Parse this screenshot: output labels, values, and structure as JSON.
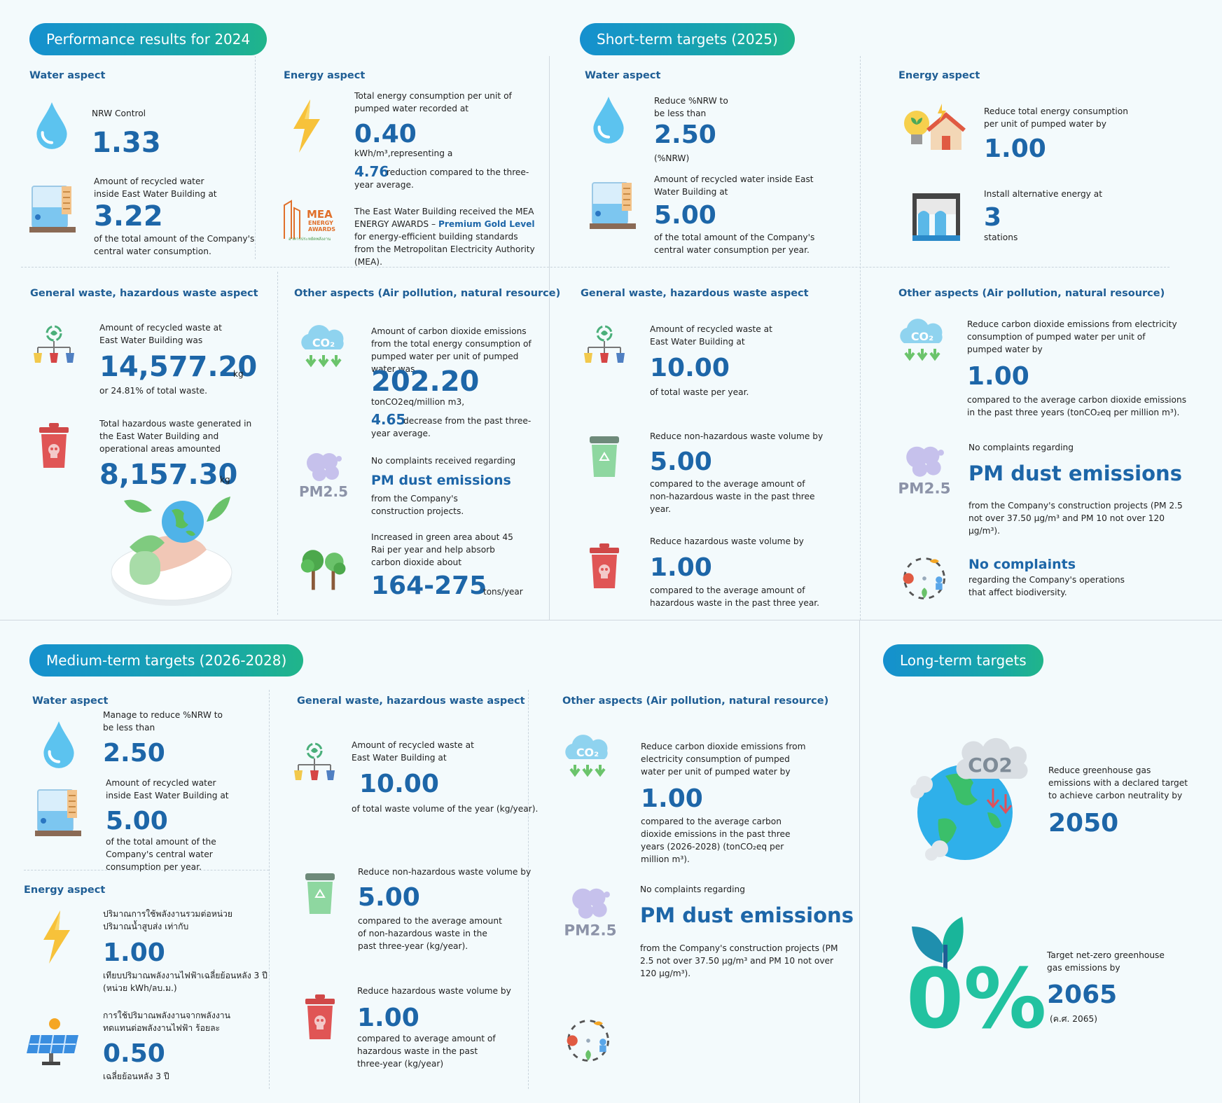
{
  "colors": {
    "accent": "#1d66a8",
    "pill_from": "#1590cf",
    "pill_to": "#20b58a",
    "background": "#f3fafc"
  },
  "perf": {
    "pill": "Performance results for 2024",
    "water": {
      "title": "Water aspect",
      "nrw_label": "NRW Control",
      "nrw_value": "1.33",
      "recycled_label": "Amount of recycled water inside East Water Building at",
      "recycled_value": "3.22",
      "recycled_note": "of the total amount of the Company's central water consumption."
    },
    "energy": {
      "title": "Energy aspect",
      "label": "Total energy consumption per unit of pumped water recorded at",
      "value": "0.40",
      "unit": "kWh/m³,representing a",
      "reduction": "4.76",
      "reduction_note": "reduction compared to the three-year average.",
      "mea_logo_title": "MEA",
      "mea_logo_sub1": "ENERGY",
      "mea_logo_sub2": "AWARDS",
      "mea_logo_thai": "อาคารประหยัดพลังงาน",
      "mea_pre": "The East Water Building received the MEA ENERGY AWARDS – ",
      "mea_highlight": "Premium Gold Level",
      "mea_post": " for energy-efficient building standards from the Metropolitan Electricity Authority (MEA)."
    },
    "waste": {
      "title": "General waste, hazardous waste aspect",
      "recycled_label": "Amount of recycled waste at East Water Building was",
      "recycled_value": "14,577.20",
      "recycled_unit": "kg",
      "recycled_note": "or 24.81% of total waste.",
      "hazard_label": "Total hazardous waste generated in the East Water Building and operational areas amounted",
      "hazard_value": "8,157.30",
      "hazard_unit": "kg"
    },
    "other": {
      "title": "Other aspects (Air pollution, natural resource)",
      "co2_label": "Amount of carbon dioxide emissions from the total energy consumption of pumped water per unit of pumped water was",
      "co2_value": "202.20",
      "co2_unit": "tonCO2eq/million m3,",
      "co2_decrease": "4.65",
      "co2_decrease_note": "decrease from the past three-year average.",
      "pm_label": "No complaints received regarding",
      "pm_value": "PM dust emissions",
      "pm_note": "from the Company's construction projects.",
      "green_label": "Increased in green area about 45 Rai per year and help absorb carbon dioxide about",
      "green_value": "164-275",
      "green_unit": "tons/year"
    }
  },
  "short": {
    "pill": "Short-term targets (2025)",
    "water": {
      "title": "Water aspect",
      "nrw_label": "Reduce %NRW to be less than",
      "nrw_value": "2.50",
      "nrw_unit": "(%NRW)",
      "recycled_label": "Amount of recycled water inside East Water Building at",
      "recycled_value": "5.00",
      "recycled_note": "of the total amount of the Company's central water consumption per year."
    },
    "energy": {
      "title": "Energy aspect",
      "label": "Reduce total energy consumption per unit of pumped water by",
      "value": "1.00",
      "alt_label": "Install alternative energy at",
      "alt_value": "3",
      "alt_unit": "stations"
    },
    "waste": {
      "title": "General waste, hazardous waste aspect",
      "recycled_label": "Amount of recycled waste at East Water Building at",
      "recycled_value": "10.00",
      "recycled_note": "of total waste per year.",
      "nonhaz_label": "Reduce non-hazardous waste volume by",
      "nonhaz_value": "5.00",
      "nonhaz_note": "compared to the average amount of non-hazardous waste in the past three year.",
      "haz_label": "Reduce hazardous waste volume by",
      "haz_value": "1.00",
      "haz_note": "compared to the average amount of hazardous waste in the past three year."
    },
    "other": {
      "title": "Other aspects (Air pollution, natural resource)",
      "co2_label": "Reduce carbon dioxide emissions from electricity consumption of pumped water per unit of pumped water by",
      "co2_value": "1.00",
      "co2_note": "compared to the average carbon dioxide emissions in the past three years (tonCO₂eq per million m³).",
      "pm_label": "No complaints regarding",
      "pm_value": "PM dust emissions",
      "pm_note": "from the Company's construction projects (PM 2.5 not over 37.50 µg/m³ and PM 10 not over 120 µg/m³).",
      "bio_value": "No complaints",
      "bio_note": "regarding the Company's operations that affect biodiversity."
    }
  },
  "medium": {
    "pill": "Medium-term targets (2026-2028)",
    "water": {
      "title": "Water aspect",
      "nrw_label": "Manage to reduce %NRW to be less than",
      "nrw_value": "2.50",
      "recycled_label": "Amount of recycled water inside East Water Building at",
      "recycled_value": "5.00",
      "recycled_note": "of the total amount of the Company's central water consumption per year."
    },
    "energy": {
      "title": "Energy aspect",
      "label": "ปริมาณการใช้พลังงานรวมต่อหน่วยปริมาณน้ำสูบส่ง เท่ากับ",
      "value": "1.00",
      "note": "เทียบปริมาณพลังงานไฟฟ้าเฉลี่ยย้อนหลัง 3 ปี (หน่วย kWh/ลบ.ม.)",
      "alt_label": "การใช้ปริมาณพลังงานจากพลังงานทดแทนต่อพลังงานไฟฟ้า ร้อยละ",
      "alt_value": "0.50",
      "alt_note": "เฉลี่ยย้อนหลัง 3 ปี"
    },
    "waste": {
      "title": "General waste, hazardous waste aspect",
      "recycled_label": "Amount of recycled waste at East Water Building at",
      "recycled_value": "10.00",
      "recycled_note": "of total waste volume of the year (kg/year).",
      "nonhaz_label": "Reduce non-hazardous waste volume by",
      "nonhaz_value": "5.00",
      "nonhaz_note": "compared to the average amount of non-hazardous waste in the past three-year (kg/year).",
      "haz_label": "Reduce hazardous waste volume by",
      "haz_value": "1.00",
      "haz_note": "compared to average amount of hazardous waste in the past three-year (kg/year)"
    },
    "other": {
      "title": "Other aspects (Air pollution, natural resource)",
      "co2_label": "Reduce carbon dioxide emissions from electricity consumption of pumped water per unit of pumped water by",
      "co2_value": "1.00",
      "co2_note": "compared to the average carbon dioxide emissions in the past three years (2026-2028) (tonCO₂eq per million m³).",
      "pm_label": "No complaints regarding",
      "pm_value": "PM dust emissions",
      "pm_note": "from the Company's construction projects (PM 2.5 not over 37.50 µg/m³ and PM 10 not over 120 µg/m³)."
    }
  },
  "long": {
    "pill": "Long-term targets",
    "ghg_label": "Reduce greenhouse gas emissions with a declared target to achieve carbon neutrality by",
    "ghg_value": "2050",
    "nz_label": "Target net-zero greenhouse gas emissions by",
    "nz_value": "2065",
    "nz_note": "(ค.ศ. 2065)",
    "co2_badge": "CO2",
    "zero_badge": "0%"
  },
  "icon_labels": {
    "co2": "CO₂",
    "pm": "PM2.5"
  }
}
